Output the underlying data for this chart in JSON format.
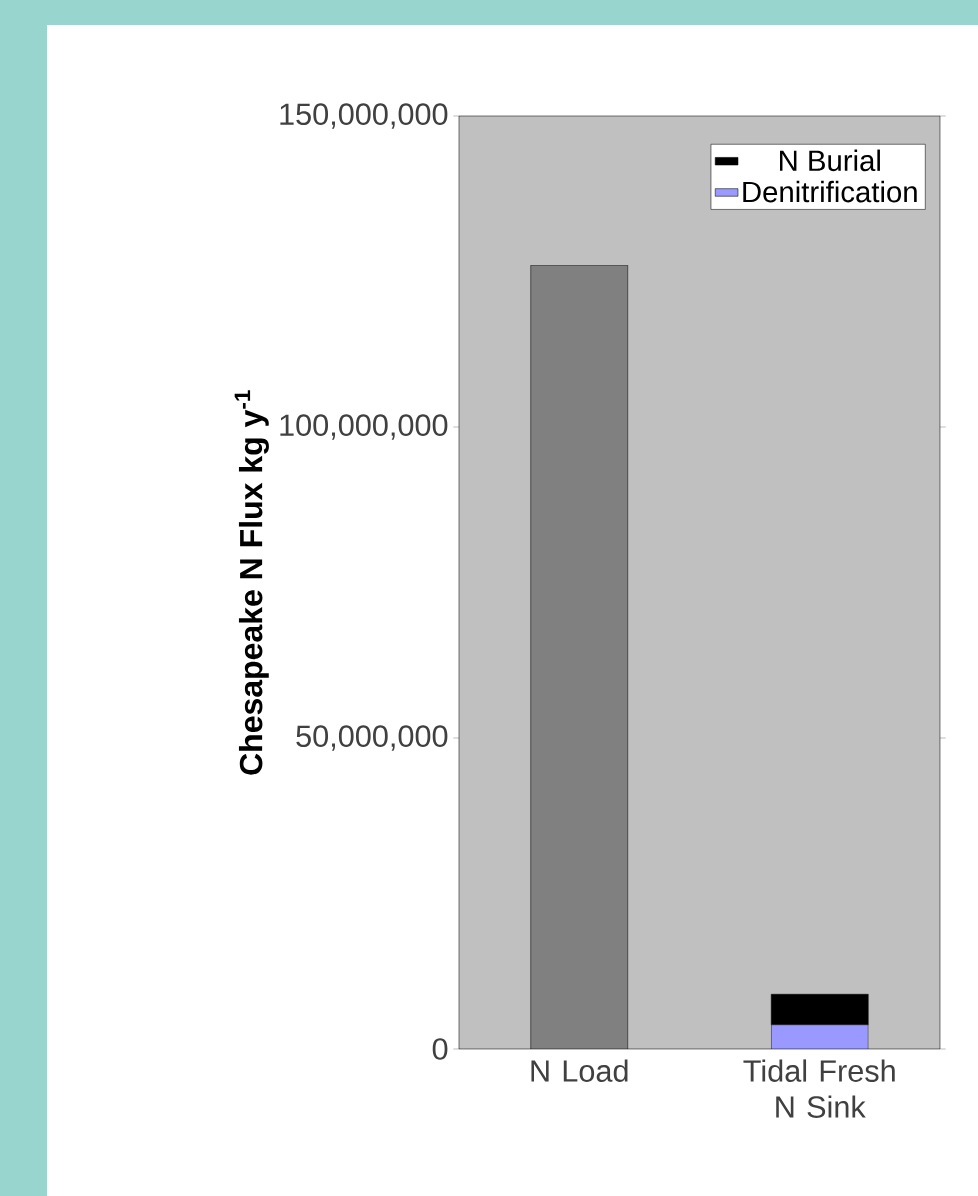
{
  "chart_data": {
    "type": "bar",
    "stacked": true,
    "ylabel": "Chesapeake N Flux  kg y$^{-1}$",
    "categories": [
      "N Load",
      "Tidal Fresh N Sink"
    ],
    "series": [
      {
        "color": "#808080",
        "values": [
          126000000,
          null
        ]
      },
      {
        "name": "Denitrification",
        "color": "#9999ff",
        "values": [
          null,
          3900000
        ]
      },
      {
        "name": "N Burial",
        "color": "#000000",
        "values": [
          null,
          4900000
        ]
      }
    ],
    "ylim": [
      0,
      150000000
    ],
    "yticks": [
      {
        "value": 0,
        "label": "0"
      },
      {
        "value": 50000000,
        "label": "50,000,000"
      },
      {
        "value": 100000000,
        "label": "100,000,000"
      },
      {
        "value": 150000000,
        "label": "150,000,000"
      }
    ],
    "legend": "top right"
  }
}
